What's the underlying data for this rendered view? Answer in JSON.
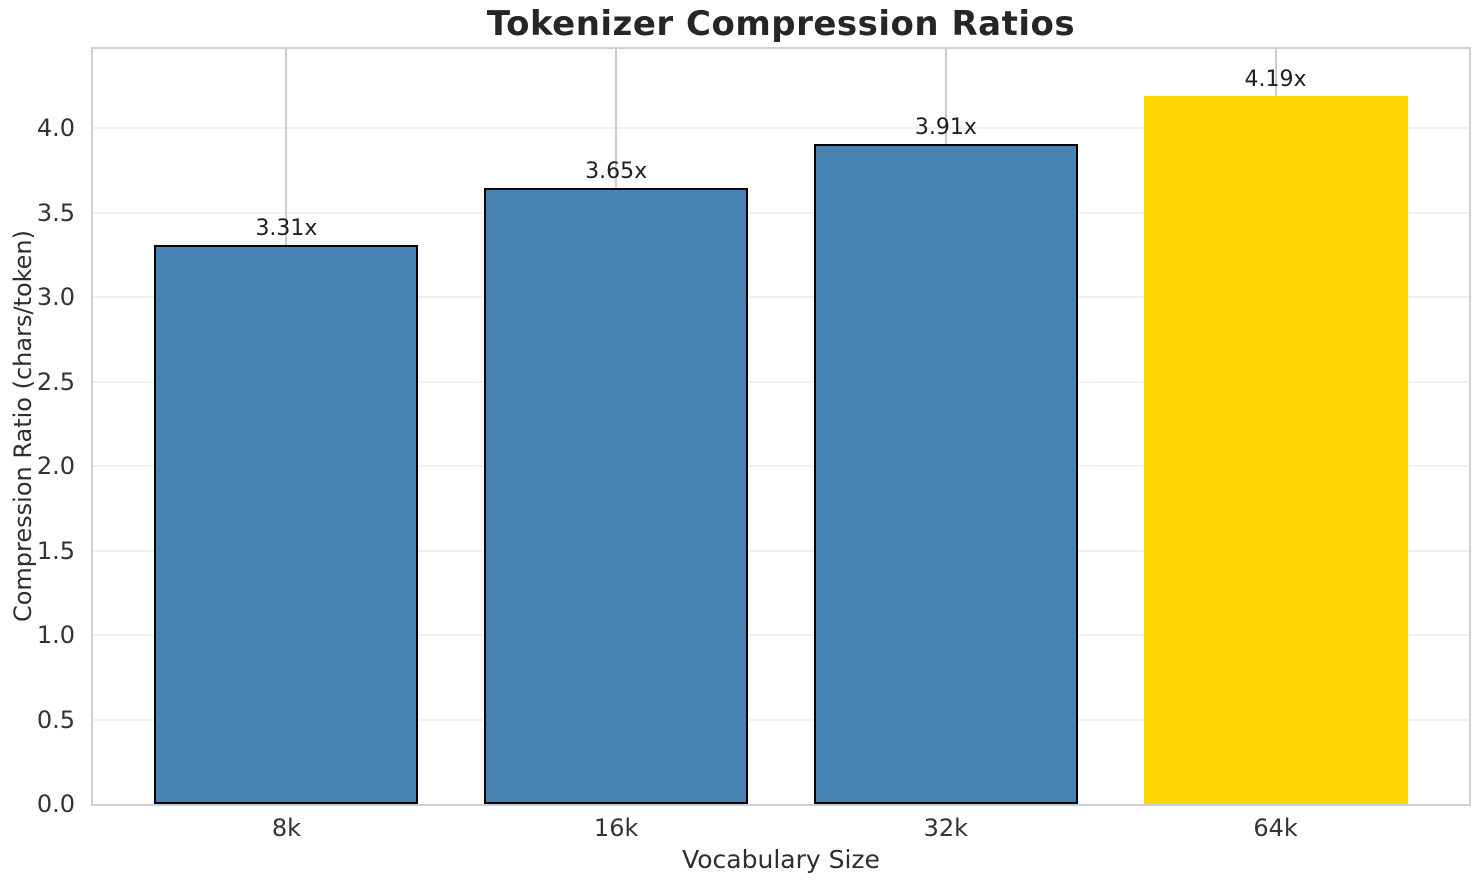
{
  "title": "Tokenizer Compression Ratios",
  "chart_data": {
    "type": "bar",
    "title": "Tokenizer Compression Ratios",
    "xlabel": "Vocabulary Size",
    "ylabel": "Compression Ratio (chars/token)",
    "categories": [
      "8k",
      "16k",
      "32k",
      "64k"
    ],
    "values": [
      3.31,
      3.65,
      3.91,
      4.19
    ],
    "bar_labels": [
      "3.31x",
      "3.65x",
      "3.91x",
      "4.19x"
    ],
    "bar_colors": [
      "#4682B4",
      "#4682B4",
      "#4682B4",
      "#FFD700"
    ],
    "bar_edge_colors": [
      "#000000",
      "#000000",
      "#000000",
      "none"
    ],
    "ylim": [
      0,
      4.47
    ],
    "yticks": [
      0.0,
      0.5,
      1.0,
      1.5,
      2.0,
      2.5,
      3.0,
      3.5,
      4.0
    ],
    "ytick_labels": [
      "0.0",
      "0.5",
      "1.0",
      "1.5",
      "2.0",
      "2.5",
      "3.0",
      "3.5",
      "4.0"
    ],
    "grid": "both",
    "legend_position": "none",
    "colors": {
      "bar_default": "#4682B4",
      "bar_highlight": "#FFD700",
      "bar_edge": "#000000",
      "hgrid": "#efefef",
      "vgrid": "#cccccc",
      "spine": "#d0d0d0",
      "tick_text": "#333333",
      "title_text": "#262626"
    }
  }
}
